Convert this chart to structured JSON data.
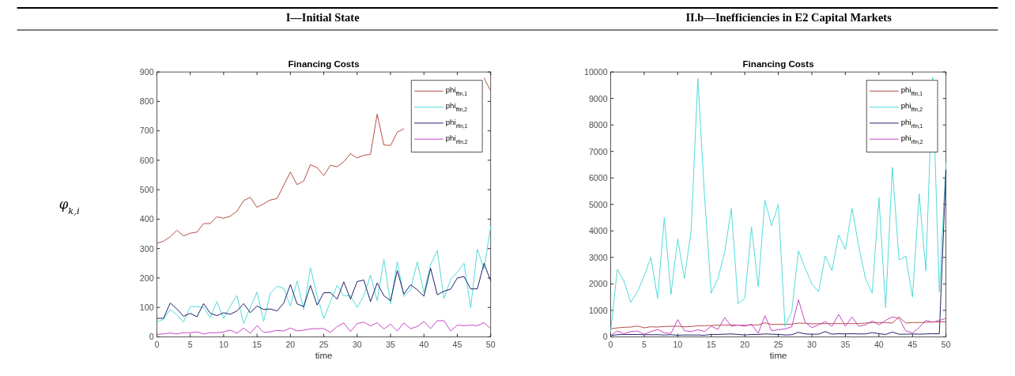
{
  "chart_data": [
    {
      "type": "line",
      "annotations": [
        "I—Initial State"
      ],
      "title": "Financing Costs",
      "xlabel": "time",
      "ylabel": "φ$_{k,i}$",
      "x": [
        0,
        1,
        2,
        3,
        4,
        5,
        6,
        7,
        8,
        9,
        10,
        11,
        12,
        13,
        14,
        15,
        16,
        17,
        18,
        19,
        20,
        21,
        22,
        23,
        24,
        25,
        26,
        27,
        28,
        29,
        30,
        31,
        32,
        33,
        34,
        35,
        36,
        37,
        38,
        39,
        40,
        41,
        42,
        43,
        44,
        45,
        46,
        47,
        48,
        49,
        50
      ],
      "xlim": [
        0,
        50
      ],
      "xticks": [
        0,
        5,
        10,
        15,
        20,
        25,
        30,
        35,
        40,
        45,
        50
      ],
      "ylim": [
        0,
        900
      ],
      "yticks": [
        0,
        100,
        200,
        300,
        400,
        500,
        600,
        700,
        800,
        900
      ],
      "legend": "top right",
      "grid": false,
      "series": [
        {
          "name": "phi$_{ffin,1}$",
          "color": "#b5473f",
          "values": [
            318,
            325,
            340,
            362,
            343,
            352,
            356,
            385,
            385,
            408,
            403,
            410,
            427,
            463,
            474,
            440,
            452,
            465,
            470,
            515,
            560,
            517,
            530,
            585,
            575,
            548,
            583,
            578,
            595,
            622,
            608,
            617,
            620,
            757,
            652,
            650,
            695,
            707,
            null,
            null,
            null,
            null,
            null,
            null,
            null,
            null,
            null,
            null,
            null,
            880,
            835
          ]
        },
        {
          "name": "phi$_{ffin,2}$",
          "color": "#4dd9d9",
          "values": [
            50,
            60,
            93,
            75,
            50,
            103,
            103,
            100,
            65,
            120,
            62,
            105,
            140,
            45,
            100,
            152,
            53,
            148,
            172,
            165,
            105,
            190,
            93,
            235,
            140,
            62,
            120,
            175,
            140,
            140,
            100,
            140,
            210,
            123,
            263,
            112,
            255,
            137,
            160,
            255,
            150,
            245,
            293,
            130,
            195,
            220,
            250,
            98,
            298,
            230,
            375
          ]
        },
        {
          "name": "phi$_{rfin,1}$",
          "color": "#1a1a66",
          "values": [
            63,
            63,
            115,
            95,
            70,
            80,
            68,
            113,
            80,
            72,
            82,
            77,
            88,
            113,
            82,
            105,
            93,
            95,
            88,
            115,
            178,
            112,
            103,
            175,
            108,
            150,
            150,
            128,
            187,
            128,
            188,
            193,
            120,
            183,
            140,
            123,
            225,
            145,
            177,
            160,
            138,
            233,
            143,
            155,
            162,
            200,
            205,
            163,
            163,
            250,
            190
          ]
        },
        {
          "name": "phi$_{rfin,2}$",
          "color": "#c43fc4",
          "values": [
            8,
            10,
            13,
            10,
            14,
            14,
            17,
            10,
            14,
            14,
            17,
            23,
            12,
            30,
            12,
            38,
            15,
            17,
            22,
            20,
            30,
            20,
            23,
            27,
            28,
            28,
            15,
            35,
            47,
            18,
            45,
            50,
            37,
            48,
            27,
            43,
            20,
            47,
            28,
            35,
            52,
            28,
            55,
            55,
            20,
            40,
            38,
            40,
            38,
            48,
            28
          ]
        }
      ]
    },
    {
      "type": "line",
      "annotations": [
        "II.b—Inefficiencies in E2 Capital Markets"
      ],
      "title": "Financing Costs",
      "xlabel": "time",
      "x": [
        0,
        1,
        2,
        3,
        4,
        5,
        6,
        7,
        8,
        9,
        10,
        11,
        12,
        13,
        14,
        15,
        16,
        17,
        18,
        19,
        20,
        21,
        22,
        23,
        24,
        25,
        26,
        27,
        28,
        29,
        30,
        31,
        32,
        33,
        34,
        35,
        36,
        37,
        38,
        39,
        40,
        41,
        42,
        43,
        44,
        45,
        46,
        47,
        48,
        49,
        50
      ],
      "xlim": [
        0,
        50
      ],
      "xticks": [
        0,
        5,
        10,
        15,
        20,
        25,
        30,
        35,
        40,
        45,
        50
      ],
      "ylim": [
        0,
        10000
      ],
      "yticks": [
        0,
        1000,
        2000,
        3000,
        4000,
        5000,
        6000,
        7000,
        8000,
        9000,
        10000
      ],
      "legend": "top right",
      "grid": false,
      "series": [
        {
          "name": "phi$_{ffin,1}$",
          "color": "#b5473f",
          "values": [
            300,
            340,
            360,
            370,
            410,
            340,
            380,
            370,
            390,
            400,
            400,
            380,
            390,
            420,
            420,
            430,
            440,
            440,
            450,
            440,
            440,
            450,
            450,
            530,
            470,
            470,
            470,
            480,
            520,
            510,
            490,
            500,
            500,
            500,
            500,
            500,
            500,
            500,
            520,
            540,
            540,
            540,
            520,
            750,
            520,
            540,
            540,
            550,
            560,
            570,
            560
          ]
        },
        {
          "name": "phi$_{ffin,2}$",
          "color": "#4dd9d9",
          "values": [
            200,
            2550,
            2100,
            1300,
            1700,
            2300,
            3000,
            1450,
            4500,
            1600,
            3700,
            2200,
            4000,
            9750,
            5300,
            1650,
            2200,
            3200,
            4850,
            1250,
            1450,
            4150,
            1900,
            5150,
            4200,
            5000,
            400,
            950,
            3250,
            2600,
            2000,
            1700,
            3050,
            2500,
            3850,
            3300,
            4850,
            3400,
            2200,
            1650,
            5250,
            1100,
            6400,
            2900,
            3050,
            1500,
            5400,
            2500,
            9800,
            1700,
            6600
          ]
        },
        {
          "name": "phi$_{rfin,1}$",
          "color": "#1a1a66",
          "values": [
            50,
            80,
            90,
            90,
            90,
            80,
            80,
            80,
            70,
            80,
            60,
            70,
            70,
            70,
            60,
            90,
            90,
            100,
            110,
            90,
            70,
            90,
            90,
            110,
            100,
            90,
            70,
            80,
            170,
            110,
            100,
            100,
            200,
            100,
            120,
            110,
            120,
            110,
            110,
            160,
            120,
            90,
            180,
            100,
            100,
            110,
            100,
            110,
            120,
            110,
            6300
          ]
        },
        {
          "name": "phi$_{rfin,2}$",
          "color": "#c43fc4",
          "values": [
            50,
            220,
            120,
            200,
            220,
            90,
            200,
            280,
            150,
            130,
            650,
            230,
            200,
            270,
            200,
            400,
            280,
            730,
            400,
            450,
            400,
            480,
            130,
            800,
            230,
            270,
            300,
            380,
            1400,
            550,
            350,
            450,
            580,
            400,
            850,
            400,
            750,
            400,
            450,
            600,
            450,
            620,
            750,
            700,
            230,
            150,
            350,
            620,
            550,
            620,
            700
          ]
        }
      ]
    }
  ]
}
